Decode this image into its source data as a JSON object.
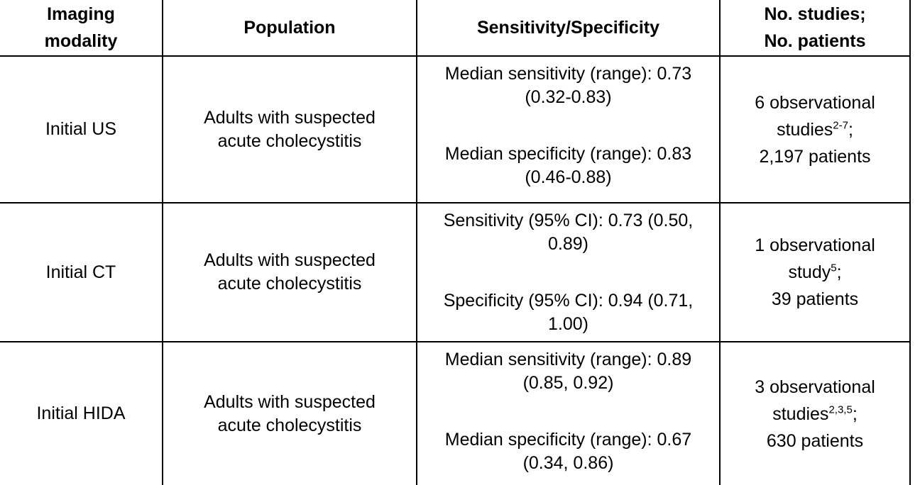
{
  "colors": {
    "border": "#000000",
    "text": "#000000",
    "background": "#ffffff"
  },
  "table": {
    "headers": {
      "modality_line1": "Imaging",
      "modality_line2": "modality",
      "population": "Population",
      "sens_spec": "Sensitivity/Specificity",
      "studies_line1": "No. studies;",
      "studies_line2": "No. patients"
    },
    "rows": [
      {
        "modality": "Initial US",
        "population_line1": "Adults with suspected",
        "population_line2": "acute cholecystitis",
        "sens_line1": "Median sensitivity (range): 0.73",
        "sens_line2": "(0.32-0.83)",
        "spec_line1": "Median specificity (range): 0.83",
        "spec_line2": "(0.46-0.88)",
        "studies_line1": "6 observational",
        "studies_word": "studies",
        "studies_sup": "2-7",
        "studies_semi": ";",
        "patients": "2,197 patients"
      },
      {
        "modality": "Initial CT",
        "population_line1": "Adults with suspected",
        "population_line2": "acute cholecystitis",
        "sens_line1": "Sensitivity (95% CI): 0.73 (0.50,",
        "sens_line2": "0.89)",
        "spec_line1": "Specificity (95% CI): 0.94 (0.71,",
        "spec_line2": "1.00)",
        "studies_line1": "1 observational",
        "studies_word": "study",
        "studies_sup": "5",
        "studies_semi": ";",
        "patients": "39 patients"
      },
      {
        "modality": "Initial HIDA",
        "population_line1": "Adults with suspected",
        "population_line2": "acute cholecystitis",
        "sens_line1": "Median sensitivity (range): 0.89",
        "sens_line2": "(0.85, 0.92)",
        "spec_line1": "Median specificity (range): 0.67",
        "spec_line2": "(0.34, 0.86)",
        "studies_line1": "3 observational",
        "studies_word": "studies",
        "studies_sup": "2,3,5",
        "studies_semi": ";",
        "patients": "630 patients"
      }
    ]
  }
}
